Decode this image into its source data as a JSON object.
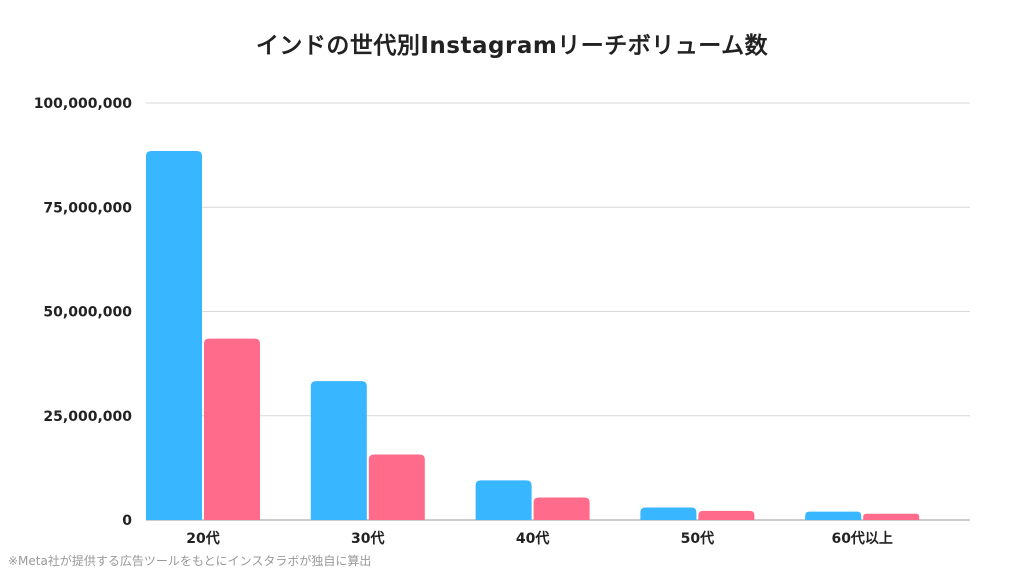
{
  "chart_data": {
    "type": "bar",
    "title": "インドの世代別Instagramリーチボリューム数",
    "categories": [
      "20代",
      "30代",
      "40代",
      "50代",
      "60代以上"
    ],
    "series": [
      {
        "color": "#38b6ff",
        "values": [
          88500000,
          33300000,
          9500000,
          3000000,
          2000000
        ]
      },
      {
        "color": "#ff6b8b",
        "values": [
          43500000,
          15700000,
          5400000,
          2200000,
          1500000
        ]
      }
    ],
    "y_ticks": [
      "0",
      "25,000,000",
      "50,000,000",
      "75,000,000",
      "100,000,000"
    ],
    "ylim": [
      0,
      100000000
    ],
    "grid": true,
    "xlabel": "",
    "ylabel": ""
  },
  "source_note": "※Meta社が提供する広告ツールをもとにインスタラボが独自に算出"
}
